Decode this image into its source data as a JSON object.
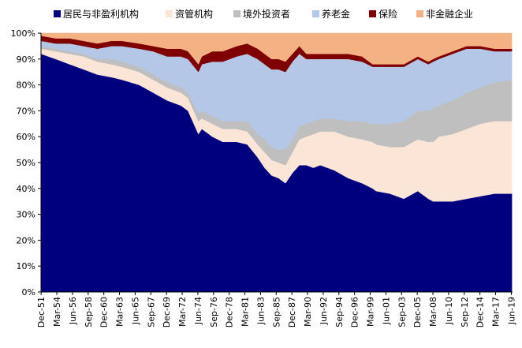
{
  "chart_data": {
    "type": "area",
    "stacked": true,
    "percent": true,
    "title": "",
    "xlabel": "",
    "ylabel": "",
    "ylim": [
      0,
      100
    ],
    "yticks": [
      "0%",
      "10%",
      "20%",
      "30%",
      "40%",
      "50%",
      "60%",
      "70%",
      "80%",
      "90%",
      "100%"
    ],
    "grid": false,
    "legend_position": "top",
    "x_tick_labels": [
      "Dec-51",
      "Mar-54",
      "Jun-56",
      "Sep-58",
      "Dec-60",
      "Mar-63",
      "Jun-65",
      "Sep-67",
      "Dec-69",
      "Mar-72",
      "Jun-74",
      "Sep-76",
      "Dec-78",
      "Mar-81",
      "Jun-83",
      "Sep-85",
      "Dec-87",
      "Mar-90",
      "Jun-92",
      "Sep-94",
      "Dec-96",
      "Mar-99",
      "Jun-01",
      "Sep-03",
      "Dec-05",
      "Mar-08",
      "Jun-10",
      "Sep-12",
      "Dec-14",
      "Mar-17",
      "Jun-19"
    ],
    "x": [
      1951.9,
      1954,
      1956,
      1958,
      1960,
      1962,
      1963.5,
      1966,
      1968,
      1970,
      1972,
      1973,
      1974.5,
      1975,
      1976.5,
      1978,
      1980,
      1981.5,
      1983,
      1984,
      1985,
      1986,
      1987,
      1988,
      1989,
      1990,
      1991,
      1992,
      1994,
      1996,
      1998,
      1999.5,
      2000,
      2002,
      2004,
      2006,
      2007.5,
      2008.2,
      2009,
      2011,
      2013,
      2015,
      2017,
      2019.5
    ],
    "series": [
      {
        "name": "居民与非盈利机构",
        "color": "#00007f",
        "values": [
          92,
          90,
          88,
          86,
          84,
          83,
          82,
          80,
          77,
          74,
          72,
          70,
          61,
          63,
          60,
          58,
          58,
          57,
          52,
          48,
          45,
          44,
          42,
          46,
          49,
          49,
          48,
          49,
          47,
          44,
          42,
          40,
          39,
          38,
          36,
          39,
          36,
          35,
          35,
          35,
          36,
          37,
          38,
          38
        ]
      },
      {
        "name": "资管机构",
        "color": "#fbe5d6",
        "values": [
          2,
          3,
          4,
          5,
          5,
          5,
          5,
          5,
          5,
          5,
          5,
          5,
          5,
          4,
          5,
          5,
          5,
          5,
          5,
          6,
          6,
          6,
          7,
          8,
          10,
          11,
          13,
          13,
          15,
          16,
          17,
          18,
          18,
          18,
          20,
          20,
          22,
          23,
          25,
          26,
          27,
          28,
          28,
          28
        ]
      },
      {
        "name": "境外投资者",
        "color": "#bfbfbf",
        "values": [
          1,
          1,
          1,
          1,
          1,
          2,
          2,
          2,
          2,
          2,
          2,
          2,
          3,
          3,
          3,
          3,
          3,
          4,
          4,
          5,
          5,
          5,
          6,
          5,
          5,
          5,
          5,
          5,
          5,
          6,
          7,
          7,
          8,
          9,
          10,
          11,
          12,
          13,
          12,
          13,
          14,
          14,
          15,
          16
        ]
      },
      {
        "name": "养老金",
        "color": "#b4c7e7",
        "values": [
          2,
          2,
          3,
          3,
          4,
          5,
          6,
          7,
          9,
          10,
          12,
          13,
          16,
          18,
          21,
          23,
          25,
          26,
          29,
          29,
          30,
          31,
          30,
          30,
          28,
          25,
          24,
          23,
          23,
          24,
          23,
          22,
          22,
          22,
          21,
          20,
          18,
          18,
          18,
          18,
          17,
          15,
          12,
          11
        ]
      },
      {
        "name": "保险",
        "color": "#7f0000",
        "values": [
          2,
          2,
          2,
          2,
          2,
          2,
          2,
          2,
          2,
          3,
          3,
          3,
          3,
          3,
          4,
          4,
          4,
          4,
          4,
          4,
          4,
          4,
          4,
          3,
          3,
          2,
          2,
          2,
          2,
          2,
          2,
          1,
          1,
          1,
          1,
          1,
          1,
          1,
          1,
          1,
          1,
          1,
          1,
          1
        ]
      },
      {
        "name": "非金融企业",
        "color": "#f4b183",
        "values": [
          1,
          2,
          2,
          3,
          4,
          3,
          3,
          4,
          5,
          6,
          6,
          7,
          12,
          9,
          7,
          7,
          5,
          4,
          6,
          8,
          10,
          10,
          11,
          8,
          5,
          8,
          8,
          8,
          8,
          8,
          9,
          12,
          12,
          12,
          12,
          9,
          11,
          10,
          9,
          7,
          5,
          5,
          6,
          6
        ]
      }
    ]
  }
}
